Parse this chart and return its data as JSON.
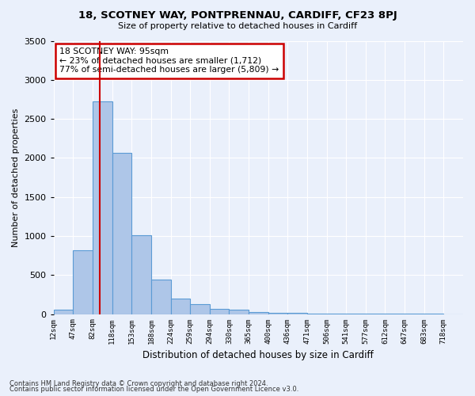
{
  "title1": "18, SCOTNEY WAY, PONTPRENNAU, CARDIFF, CF23 8PJ",
  "title2": "Size of property relative to detached houses in Cardiff",
  "xlabel": "Distribution of detached houses by size in Cardiff",
  "ylabel": "Number of detached properties",
  "bins": [
    "12sqm",
    "47sqm",
    "82sqm",
    "118sqm",
    "153sqm",
    "188sqm",
    "224sqm",
    "259sqm",
    "294sqm",
    "330sqm",
    "365sqm",
    "400sqm",
    "436sqm",
    "471sqm",
    "506sqm",
    "541sqm",
    "577sqm",
    "612sqm",
    "647sqm",
    "683sqm",
    "718sqm"
  ],
  "bin_edges": [
    0,
    1,
    2,
    3,
    4,
    5,
    6,
    7,
    8,
    9,
    10,
    11,
    12,
    13,
    14,
    15,
    16,
    17,
    18,
    19,
    20,
    21
  ],
  "values": [
    60,
    820,
    2720,
    2060,
    1010,
    440,
    200,
    130,
    65,
    55,
    30,
    20,
    15,
    8,
    5,
    3,
    2,
    1,
    1,
    1,
    0
  ],
  "bar_color": "#aec6e8",
  "bar_edge_color": "#5b9bd5",
  "bar_linewidth": 0.8,
  "bg_color": "#eaf0fb",
  "grid_color": "#ffffff",
  "ylim": [
    0,
    3500
  ],
  "yticks": [
    0,
    500,
    1000,
    1500,
    2000,
    2500,
    3000,
    3500
  ],
  "red_line_x": 2.37,
  "annotation_box_text": "18 SCOTNEY WAY: 95sqm\n← 23% of detached houses are smaller (1,712)\n77% of semi-detached houses are larger (5,809) →",
  "annotation_box_color": "#ffffff",
  "annotation_box_edge": "#cc0000",
  "footer1": "Contains HM Land Registry data © Crown copyright and database right 2024.",
  "footer2": "Contains public sector information licensed under the Open Government Licence v3.0."
}
